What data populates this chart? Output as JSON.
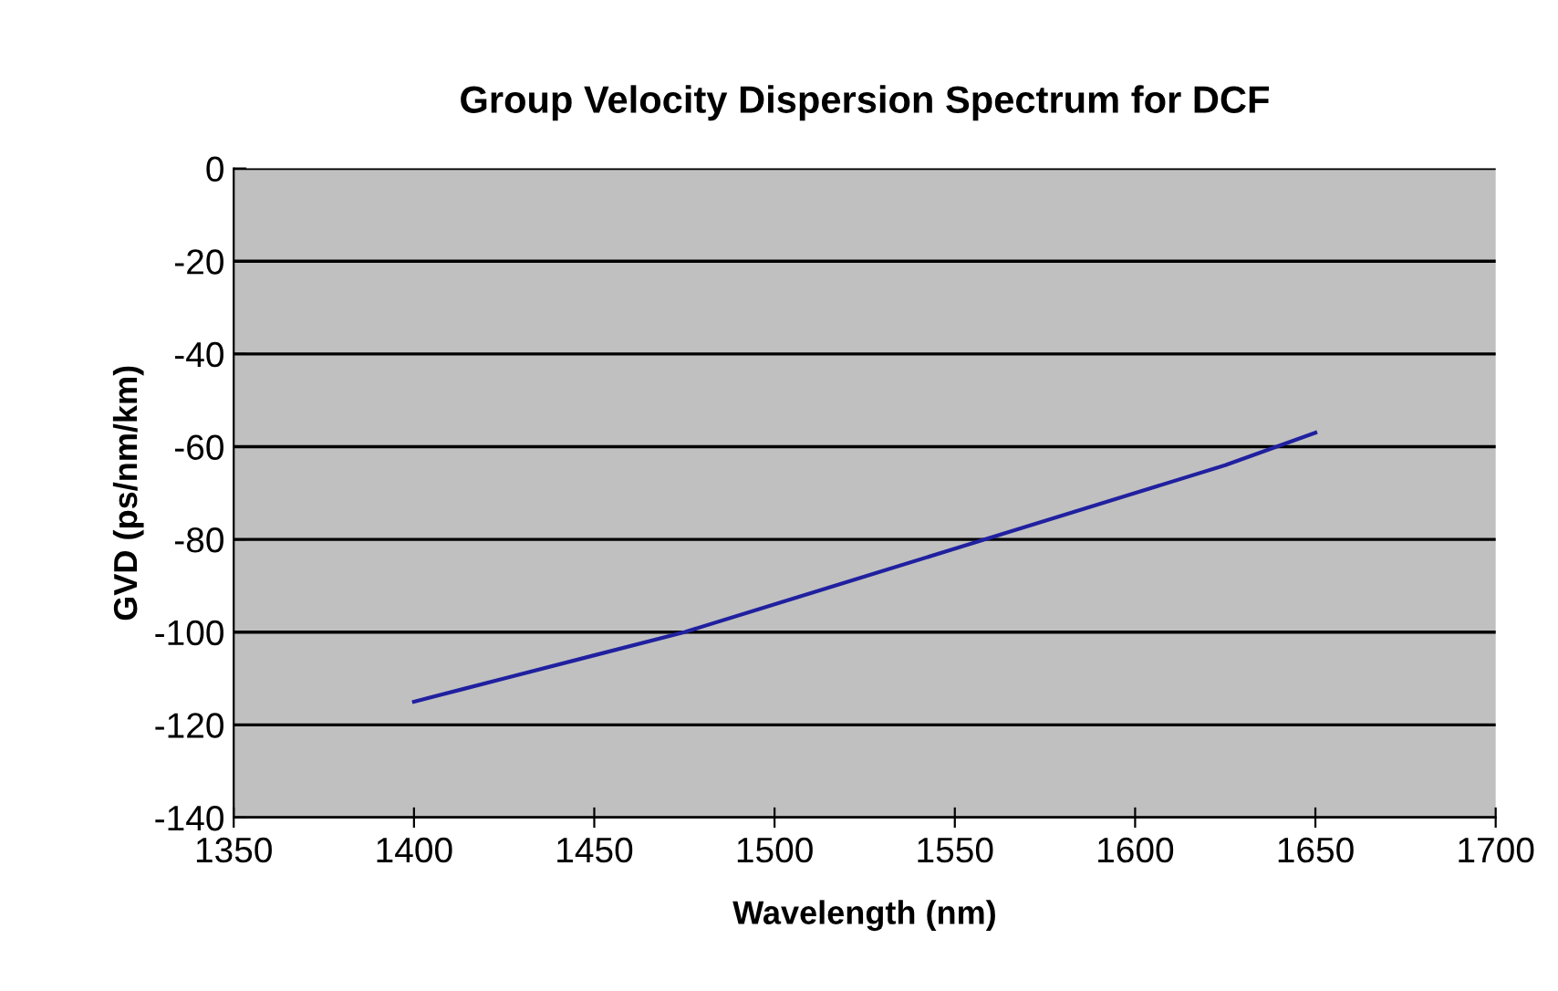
{
  "chart_data": {
    "type": "line",
    "title": "Group Velocity Dispersion Spectrum for DCF",
    "xlabel": "Wavelength (nm)",
    "ylabel": "GVD (ps/nm/km)",
    "x": [
      1400,
      1425,
      1450,
      1475,
      1500,
      1525,
      1550,
      1575,
      1600,
      1625,
      1650
    ],
    "series": [
      {
        "color": "#2020a0",
        "values": [
          -115,
          -110,
          -105,
          -100,
          -94,
          -88,
          -82,
          -76,
          -70,
          -64,
          -57
        ]
      }
    ],
    "xlim": [
      1350,
      1700
    ],
    "xticks": [
      1350,
      1400,
      1450,
      1500,
      1550,
      1600,
      1650,
      1700
    ],
    "ylim": [
      -140,
      0
    ],
    "yticks": [
      -140,
      -120,
      -100,
      -80,
      -60,
      -40,
      -20,
      0
    ],
    "grid": "y",
    "legend": false,
    "marker": "none",
    "line_style": "solid"
  }
}
